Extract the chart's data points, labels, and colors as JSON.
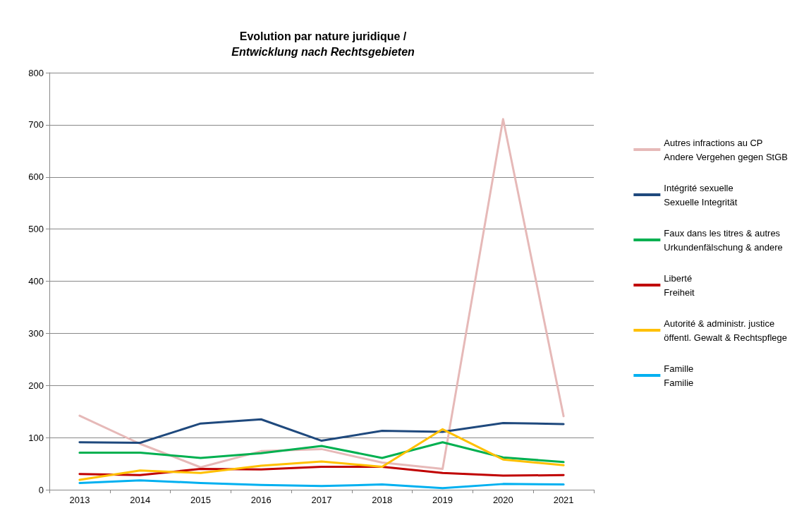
{
  "chart_data": {
    "type": "line",
    "title": "Evolution par nature juridique /",
    "subtitle": "Entwicklung nach Rechtsgebieten",
    "categories": [
      "2013",
      "2014",
      "2015",
      "2016",
      "2017",
      "2018",
      "2019",
      "2020",
      "2021"
    ],
    "series": [
      {
        "name": "Autres infractions au CP\nAndere Vergehen gegen StGB",
        "color": "#e6b9b8",
        "values": [
          142,
          88,
          43,
          74,
          78,
          52,
          40,
          711,
          141
        ]
      },
      {
        "name": "Intégrité sexuelle\nSexuelle Integrität",
        "color": "#1f497d",
        "values": [
          91,
          90,
          127,
          135,
          94,
          113,
          111,
          128,
          126
        ]
      },
      {
        "name": "Faux dans les titres & autres\nUrkundenfälschung & andere",
        "color": "#00b050",
        "values": [
          71,
          71,
          61,
          70,
          84,
          61,
          91,
          62,
          53
        ]
      },
      {
        "name": "Liberté\nFreiheit",
        "color": "#c00000",
        "values": [
          30,
          28,
          40,
          39,
          44,
          44,
          32,
          27,
          28
        ]
      },
      {
        "name": "Autorité & administr. justice\nöffentl. Gewalt & Rechtspflege",
        "color": "#ffc000",
        "values": [
          19,
          37,
          32,
          46,
          54,
          44,
          116,
          58,
          47
        ]
      },
      {
        "name": "Famille\nFamilie",
        "color": "#00b0f0",
        "values": [
          13,
          18,
          13,
          9,
          7,
          10,
          3,
          11,
          10
        ]
      }
    ],
    "ylim": [
      0,
      800
    ],
    "yticks": [
      0,
      100,
      200,
      300,
      400,
      500,
      600,
      700,
      800
    ],
    "grid": "y",
    "legend": "right",
    "marker": "none",
    "line_style": "solid"
  }
}
